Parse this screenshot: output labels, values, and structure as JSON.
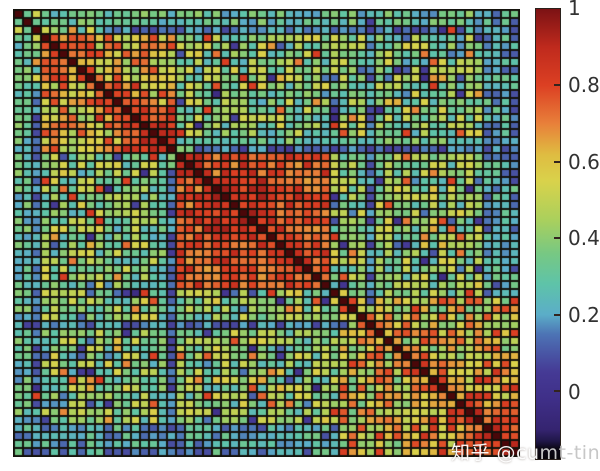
{
  "chart_data": {
    "type": "heatmap",
    "summary": "Dense correlation-matrix heatmap (~56x56 variables), no axis tick labels, dark unit diagonal, red correlated clusters on the diagonal (small clusters rows 3-17, a strong cluster rows 18-34, patchy cluster rows 36-55 with a deep-red bottom-right corner), low-correlation blue bands at rows/cols 0-2, 16-17, 39 and bottom rows 52-55, green/yellow mid-range background, vertical colorbar at right from 1 down to below 0.",
    "value_range": [
      -0.177,
      1.0
    ],
    "grid_color": "#14120c",
    "matrix": {
      "size": 56,
      "seed": 1337,
      "diagonal_value": 1.0,
      "diagonal_color": "#4a0709",
      "base": {
        "level": 0.4,
        "jitter": 0.17,
        "outlier_prob": 0.09,
        "outlier_delta": 0.27
      },
      "regions": [
        {
          "rows": [
            3,
            17
          ],
          "cols": [
            3,
            17
          ],
          "level": 0.6,
          "jitter": 0.2
        },
        {
          "rows": [
            3,
            8
          ],
          "cols": [
            3,
            8
          ],
          "level": 0.7,
          "jitter": 0.15
        },
        {
          "rows": [
            9,
            13
          ],
          "cols": [
            9,
            13
          ],
          "level": 0.72,
          "jitter": 0.14
        },
        {
          "rows": [
            12,
            17
          ],
          "cols": [
            12,
            17
          ],
          "level": 0.8,
          "jitter": 0.12
        },
        {
          "rows": [
            18,
            34
          ],
          "cols": [
            18,
            34
          ],
          "level": 0.78,
          "jitter": 0.13
        },
        {
          "rows": [
            21,
            27
          ],
          "cols": [
            21,
            27
          ],
          "level": 0.86,
          "jitter": 0.09
        },
        {
          "rows": [
            36,
            55
          ],
          "cols": [
            36,
            55
          ],
          "level": 0.58,
          "jitter": 0.24
        },
        {
          "rows": [
            44,
            55
          ],
          "cols": [
            44,
            55
          ],
          "level": 0.66,
          "jitter": 0.2
        },
        {
          "rows": [
            50,
            55
          ],
          "cols": [
            50,
            55
          ],
          "level": 0.8,
          "jitter": 0.13
        },
        {
          "rows": [
            52,
            55
          ],
          "cols": [
            0,
            35
          ],
          "level": 0.22,
          "jitter": 0.14
        },
        {
          "rows": [
            0,
            1
          ],
          "cols": [
            3,
            51
          ],
          "level": 0.3,
          "jitter": 0.13
        },
        {
          "rows": [
            2,
            2
          ],
          "cols": [
            10,
            46
          ],
          "level": 0.15,
          "jitter": 0.09
        },
        {
          "rows": [
            16,
            16
          ],
          "cols": [
            20,
            51
          ],
          "level": 0.32,
          "jitter": 0.11
        },
        {
          "rows": [
            17,
            17
          ],
          "cols": [
            20,
            55
          ],
          "level": 0.13,
          "jitter": 0.09
        },
        {
          "rows": [
            39,
            39
          ],
          "cols": [
            0,
            36
          ],
          "level": 0.16,
          "jitter": 0.1
        }
      ]
    },
    "colormap": [
      [
        -0.177,
        "#060409"
      ],
      [
        -0.15,
        "#0b0714"
      ],
      [
        -0.13,
        "#201748"
      ],
      [
        -0.1,
        "#352470"
      ],
      [
        -0.02,
        "#3f2f88"
      ],
      [
        0.05,
        "#453a95"
      ],
      [
        0.1,
        "#4956a5"
      ],
      [
        0.15,
        "#4d74b5"
      ],
      [
        0.2,
        "#5badc8"
      ],
      [
        0.28,
        "#5ec3a9"
      ],
      [
        0.36,
        "#77c883"
      ],
      [
        0.45,
        "#abd05c"
      ],
      [
        0.55,
        "#d9d24b"
      ],
      [
        0.62,
        "#dfbc41"
      ],
      [
        0.7,
        "#e8803a"
      ],
      [
        0.8,
        "#dc4023"
      ],
      [
        0.9,
        "#bf2a1d"
      ],
      [
        1.0,
        "#7c1214"
      ]
    ],
    "colorbar": {
      "range": [
        -0.177,
        1.0
      ],
      "ticks": [
        {
          "label": "1",
          "value": 1.0
        },
        {
          "label": "0.8",
          "value": 0.8
        },
        {
          "label": "0.6",
          "value": 0.6
        },
        {
          "label": "0.4",
          "value": 0.4
        },
        {
          "label": "0.2",
          "value": 0.2
        },
        {
          "label": "0",
          "value": 0.0
        }
      ]
    }
  },
  "watermark": {
    "full": "知乎 @cumt-ting",
    "part_over_chart": "知乎 @cu",
    "part_over_margin": "mt-ting"
  }
}
